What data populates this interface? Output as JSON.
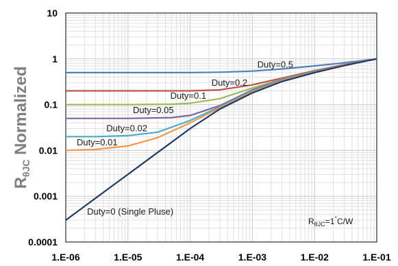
{
  "chart_data": {
    "type": "line",
    "x_scale": "log",
    "y_scale": "log",
    "xlim": [
      1e-06,
      0.1
    ],
    "ylim": [
      0.0001,
      10
    ],
    "grid": true,
    "title": "",
    "xlabel": "",
    "ylabel": "RθJC Normalized",
    "ylabel_main": "R",
    "ylabel_sub": "θJC",
    "ylabel_rest": " Normalized",
    "x_tick_labels": [
      "1.E-06",
      "1.E-05",
      "1.E-04",
      "1.E-03",
      "1.E-02",
      "1.E-01"
    ],
    "y_tick_labels": [
      "0.0001",
      "0.001",
      "0.01",
      "0.1",
      "1",
      "10"
    ],
    "annotation": {
      "main": "R",
      "sub": "θJC",
      "eq": "=1",
      "deg": "°",
      "unit": "C/W"
    },
    "series": [
      {
        "label": "Duty=0.5",
        "color": "#4f81bd",
        "x": [
          1e-06,
          1e-05,
          0.0001,
          0.0003,
          0.001,
          0.003,
          0.01,
          0.03,
          0.1
        ],
        "y": [
          0.5,
          0.5,
          0.5,
          0.51,
          0.54,
          0.6,
          0.7,
          0.82,
          1.0
        ]
      },
      {
        "label": "Duty=0.2",
        "color": "#c0504d",
        "x": [
          1e-06,
          1e-05,
          0.0001,
          0.0003,
          0.001,
          0.003,
          0.01,
          0.03,
          0.1
        ],
        "y": [
          0.2,
          0.2,
          0.2,
          0.21,
          0.27,
          0.38,
          0.55,
          0.75,
          1.0
        ]
      },
      {
        "label": "Duty=0.1",
        "color": "#9bbb59",
        "x": [
          1e-06,
          1e-05,
          5e-05,
          0.0001,
          0.0003,
          0.001,
          0.003,
          0.01,
          0.03,
          0.1
        ],
        "y": [
          0.1,
          0.1,
          0.102,
          0.107,
          0.135,
          0.23,
          0.36,
          0.53,
          0.74,
          1.0
        ]
      },
      {
        "label": "Duty=0.05",
        "color": "#8064a2",
        "x": [
          1e-06,
          1e-05,
          5e-05,
          0.0001,
          0.0003,
          0.001,
          0.003,
          0.01,
          0.03,
          0.1
        ],
        "y": [
          0.05,
          0.05,
          0.052,
          0.058,
          0.095,
          0.21,
          0.35,
          0.52,
          0.73,
          1.0
        ]
      },
      {
        "label": "Duty=0.02",
        "color": "#4bacc6",
        "x": [
          1e-06,
          3e-06,
          1e-05,
          3e-05,
          0.0001,
          0.0003,
          0.001,
          0.003,
          0.01,
          0.03,
          0.1
        ],
        "y": [
          0.02,
          0.02,
          0.021,
          0.025,
          0.045,
          0.09,
          0.2,
          0.34,
          0.51,
          0.72,
          1.0
        ]
      },
      {
        "label": "Duty=0.01",
        "color": "#f79646",
        "x": [
          1e-06,
          3e-06,
          1e-05,
          3e-05,
          0.0001,
          0.0003,
          0.001,
          0.003,
          0.01,
          0.03,
          0.1
        ],
        "y": [
          0.01,
          0.0105,
          0.0125,
          0.019,
          0.04,
          0.085,
          0.19,
          0.33,
          0.5,
          0.72,
          1.0
        ]
      },
      {
        "label": "Duty=0 (Single Pluse)",
        "color": "#1f3864",
        "x": [
          1e-06,
          1e-05,
          0.0001,
          0.0003,
          0.001,
          0.003,
          0.01,
          0.03,
          0.1
        ],
        "y": [
          0.0003,
          0.003,
          0.03,
          0.08,
          0.18,
          0.32,
          0.5,
          0.71,
          1.0
        ]
      }
    ]
  }
}
